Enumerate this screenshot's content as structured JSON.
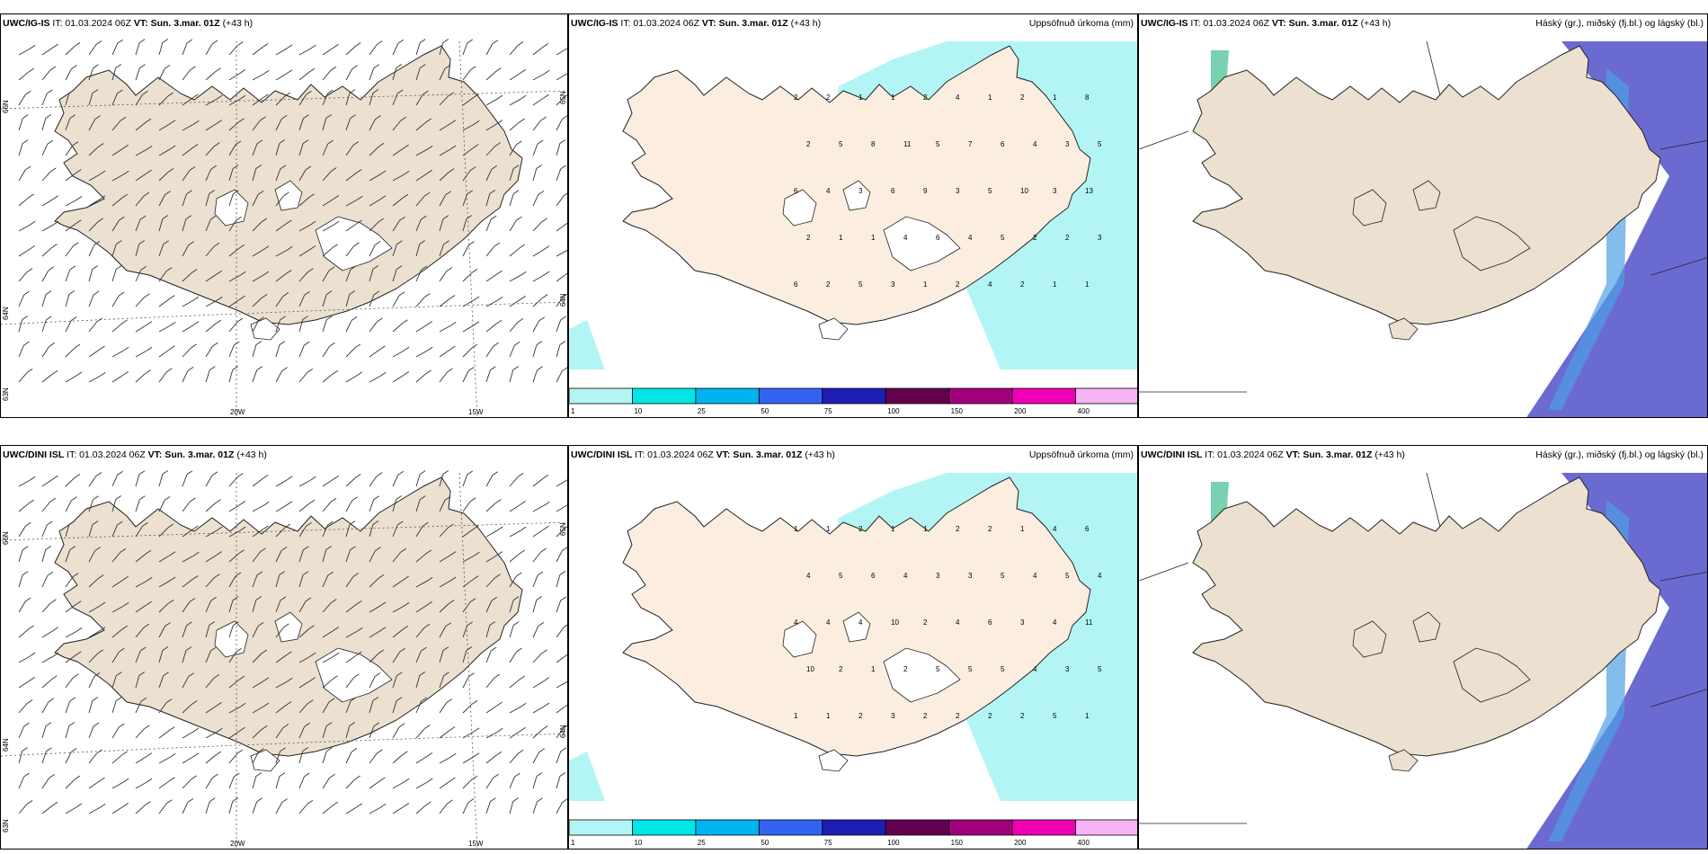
{
  "panels": [
    {
      "model": "UWC/IG-IS",
      "it": "IT: 01.03.2024 06Z",
      "vt_prefix": "VT:",
      "vt": "Sun. 3.mar. 01Z",
      "lead": "(+43 h)",
      "right_title": ""
    },
    {
      "model": "UWC/IG-IS",
      "it": "IT: 01.03.2024 06Z",
      "vt_prefix": "VT:",
      "vt": "Sun. 3.mar. 01Z",
      "lead": "(+43 h)",
      "right_title": "Uppsöfnuð úrkoma (mm)"
    },
    {
      "model": "UWC/IG-IS",
      "it": "IT: 01.03.2024 06Z",
      "vt_prefix": "VT:",
      "vt": "Sun. 3.mar. 01Z",
      "lead": "(+43 h)",
      "right_title": "Háský (gr.), miðský (fj.bl.) og lágský (bl.)"
    },
    {
      "model": "UWC/DINI ISL",
      "it": "IT: 01.03.2024 06Z",
      "vt_prefix": "VT:",
      "vt": "Sun. 3.mar. 01Z",
      "lead": "(+43 h)",
      "right_title": ""
    },
    {
      "model": "UWC/DINI ISL",
      "it": "IT: 01.03.2024 06Z",
      "vt_prefix": "VT:",
      "vt": "Sun. 3.mar. 01Z",
      "lead": "(+43 h)",
      "right_title": "Uppsöfnuð úrkoma (mm)"
    },
    {
      "model": "UWC/DINI ISL",
      "it": "IT: 01.03.2024 06Z",
      "vt_prefix": "VT:",
      "vt": "Sun. 3.mar. 01Z",
      "lead": "(+43 h)",
      "right_title": "Háský (gr.), miðský (fj.bl.) og lágský (bl.)"
    }
  ],
  "wind_axis_labels": {
    "lat_66": "66N",
    "lat_64": "64N",
    "lat_63": "63N",
    "lat_65": "65N",
    "lon_20w": "20W",
    "lon_15w": "15W"
  },
  "precip_colorbar": {
    "ticks": [
      "1",
      "10",
      "25",
      "50",
      "75",
      "100",
      "150",
      "200",
      "400"
    ],
    "colors": [
      "#b3f5f5",
      "#00e6e6",
      "#00b4f0",
      "#3264f0",
      "#1e1eb4",
      "#640050",
      "#a0007a",
      "#f000b4",
      "#f5b4f5"
    ]
  },
  "precip_values_ig": [
    "2",
    "2",
    "1",
    "1",
    "2",
    "4",
    "1",
    "2",
    "1",
    "8",
    "2",
    "5",
    "8",
    "11",
    "5",
    "7",
    "6",
    "4",
    "3",
    "5",
    "6",
    "4",
    "3",
    "6",
    "9",
    "3",
    "5",
    "10",
    "3",
    "13",
    "2",
    "1",
    "1",
    "4",
    "6",
    "4",
    "5",
    "2",
    "2",
    "3",
    "6",
    "2",
    "5",
    "3",
    "1",
    "2",
    "4",
    "2",
    "1",
    "1"
  ],
  "precip_values_dini": [
    "1",
    "1",
    "2",
    "1",
    "1",
    "2",
    "2",
    "1",
    "4",
    "6",
    "4",
    "5",
    "6",
    "4",
    "3",
    "3",
    "5",
    "4",
    "5",
    "4",
    "4",
    "4",
    "4",
    "10",
    "2",
    "4",
    "6",
    "3",
    "4",
    "11",
    "10",
    "2",
    "1",
    "2",
    "5",
    "5",
    "5",
    "4",
    "3",
    "5",
    "1",
    "1",
    "2",
    "3",
    "2",
    "2",
    "2",
    "2",
    "5",
    "1"
  ],
  "colors": {
    "land": "#ece0d0",
    "land_precip": "#fbeee0",
    "glacier": "#ffffff",
    "precip_light": "#b3f5f5",
    "cloud_low": "#5050c8",
    "cloud_mid": "#50a0e6",
    "cloud_high": "#20b080"
  }
}
